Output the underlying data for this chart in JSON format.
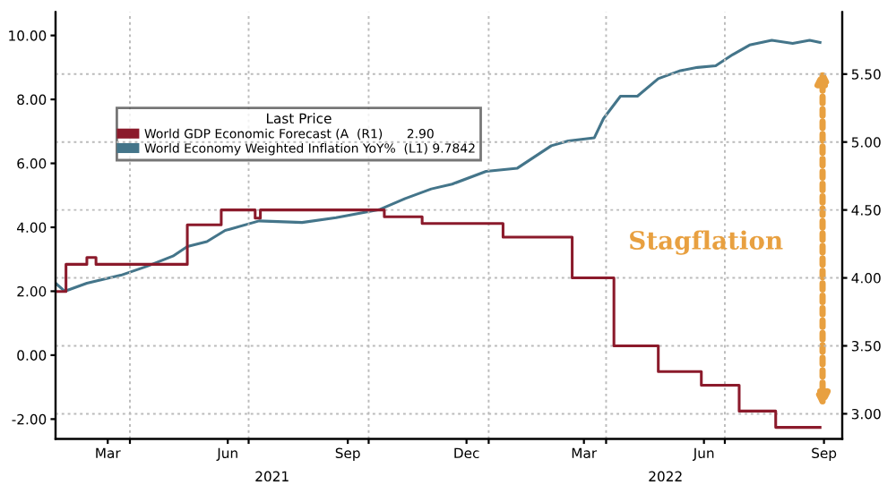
{
  "chart_data": {
    "type": "step",
    "legend_title": "Last Price",
    "legend": "top left",
    "grid": true,
    "xlim": [
      "2021-02-03",
      "2022-09-29"
    ],
    "xticks": [
      {
        "value": "2021-03-15",
        "label": "Mar"
      },
      {
        "value": "2021-04-01",
        "label": null
      },
      {
        "value": "2021-06-15",
        "label": "Jun"
      },
      {
        "value": "2021-07-01",
        "label": null
      },
      {
        "value": "2021-09-15",
        "label": "Sep"
      },
      {
        "value": "2021-10-01",
        "label": null
      },
      {
        "value": "2021-12-15",
        "label": "Dec"
      },
      {
        "value": "2022-01-01",
        "label": null
      },
      {
        "value": "2022-03-15",
        "label": "Mar"
      },
      {
        "value": "2022-04-01",
        "label": null
      },
      {
        "value": "2022-06-15",
        "label": "Jun"
      },
      {
        "value": "2022-07-01",
        "label": null
      },
      {
        "value": "2022-09-15",
        "label": "Sep"
      }
    ],
    "ylim": [
      -2.62,
      10.73
    ],
    "yticks": [
      {
        "value": -2,
        "label": "-2.00"
      },
      {
        "value": 0,
        "label": "0.00"
      },
      {
        "value": 2,
        "label": "2.00"
      },
      {
        "value": 4,
        "label": "4.00"
      },
      {
        "value": 6,
        "label": "6.00"
      },
      {
        "value": 8,
        "label": "8.00"
      },
      {
        "value": 10,
        "label": "10.00"
      }
    ],
    "y2lim": [
      2.815,
      5.956
    ],
    "y2ticks": [
      {
        "value": 3,
        "label": "3.00"
      },
      {
        "value": 3.5,
        "label": "3.50"
      },
      {
        "value": 4,
        "label": "4.00"
      },
      {
        "value": 4.5,
        "label": "4.50"
      },
      {
        "value": 5,
        "label": "5.00"
      },
      {
        "value": 5.5,
        "label": "5.50"
      }
    ],
    "annotations": [
      "2021",
      "2022",
      "Stagflation"
    ],
    "series": [
      {
        "name": "World GDP Economic Forecast (A  (R1)      2.90",
        "axis": "y2",
        "color": "#8b1a2b",
        "x": [
          "2021-02-03",
          "2021-02-11",
          "2021-02-27",
          "2021-03-06",
          "2021-05-15",
          "2021-06-10",
          "2021-07-06",
          "2021-07-10",
          "2021-10-13",
          "2021-11-11",
          "2022-01-12",
          "2022-03-06",
          "2022-04-07",
          "2022-05-11",
          "2022-06-13",
          "2022-07-12",
          "2022-08-09",
          "2022-09-12"
        ],
        "values": [
          3.9,
          4.1,
          4.15,
          4.1,
          4.39,
          4.5,
          4.44,
          4.5,
          4.45,
          4.4,
          4.3,
          4.0,
          3.5,
          3.31,
          3.21,
          3.02,
          2.9,
          2.9
        ]
      },
      {
        "name": "World Economy Weighted Inflation YoY%  (L1) 9.7842",
        "type": "line",
        "axis": "y",
        "color": "#44758a",
        "x": [
          "2021-02-03",
          "2021-02-10",
          "2021-02-27",
          "2021-03-25",
          "2021-04-14",
          "2021-05-04",
          "2021-05-15",
          "2021-05-30",
          "2021-06-13",
          "2021-07-09",
          "2021-08-11",
          "2021-09-06",
          "2021-10-09",
          "2021-10-29",
          "2021-11-18",
          "2021-12-04",
          "2021-12-30",
          "2022-01-23",
          "2022-02-05",
          "2022-02-18",
          "2022-03-03",
          "2022-03-23",
          "2022-03-30",
          "2022-04-12",
          "2022-04-25",
          "2022-05-11",
          "2022-05-28",
          "2022-06-10",
          "2022-06-24",
          "2022-07-07",
          "2022-07-20",
          "2022-08-06",
          "2022-08-22",
          "2022-09-04",
          "2022-09-12"
        ],
        "values": [
          2.25,
          2.0,
          2.25,
          2.5,
          2.78,
          3.1,
          3.4,
          3.55,
          3.9,
          4.2,
          4.15,
          4.3,
          4.55,
          4.9,
          5.2,
          5.35,
          5.75,
          5.85,
          6.2,
          6.55,
          6.7,
          6.8,
          7.4,
          8.1,
          8.1,
          8.65,
          8.9,
          9.0,
          9.05,
          9.4,
          9.7,
          9.85,
          9.75,
          9.85,
          9.78
        ]
      }
    ]
  }
}
